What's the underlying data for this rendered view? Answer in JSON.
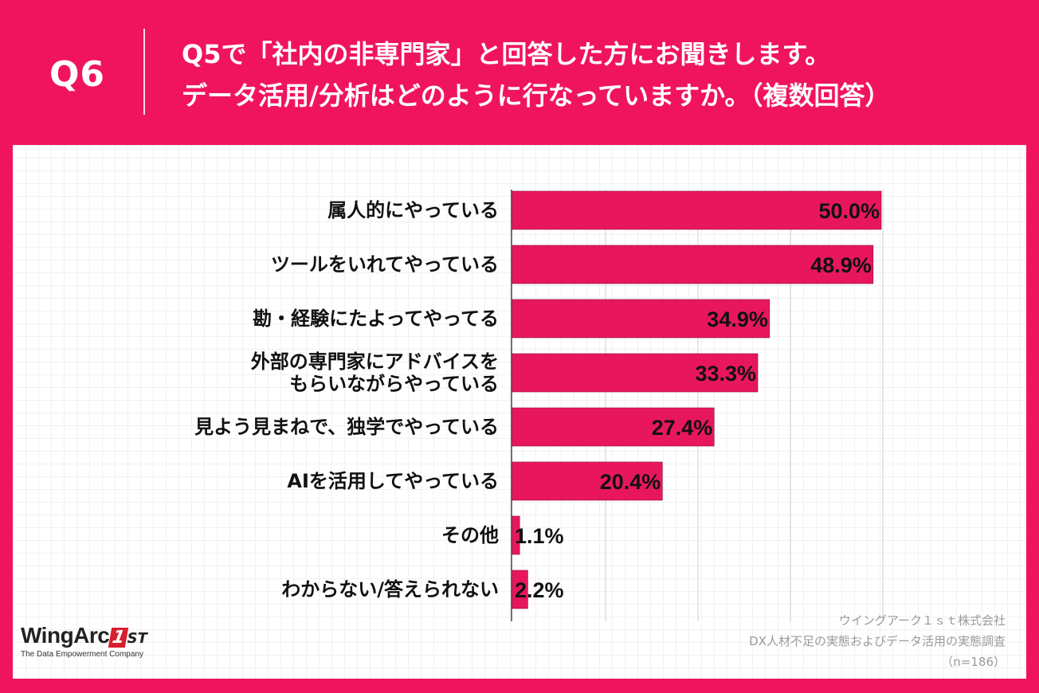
{
  "header": {
    "question_number": "Q6",
    "question_line1": "Q5で「社内の非専門家」と回答した方にお聞きします。",
    "question_line2": "データ活用/分析はどのように行なっていますか。（複数回答）"
  },
  "colors": {
    "brand": "#F0145F",
    "bar": "#E8175D",
    "bar_outline": "#8a0f2e"
  },
  "chart_data": {
    "type": "bar",
    "orientation": "horizontal",
    "title": "",
    "xlabel": "",
    "ylabel": "",
    "xlim": [
      0,
      50
    ],
    "grid": true,
    "categories": [
      "属人的にやっている",
      "ツールをいれてやっている",
      "勘・経験にたよってやってる",
      "外部の専門家にアドバイスを\nもらいながらやっている",
      "見よう見まねで、独学でやっている",
      "AIを活用してやっている",
      "その他",
      "わからない/答えられない"
    ],
    "values": [
      50.0,
      48.9,
      34.9,
      33.3,
      27.4,
      20.4,
      1.1,
      2.2
    ],
    "value_labels": [
      "50.0%",
      "48.9%",
      "34.9%",
      "33.3%",
      "27.4%",
      "20.4%",
      "1.1%",
      "2.2%"
    ]
  },
  "logo": {
    "name": "WingArc",
    "badge": "1",
    "suffix": "ST",
    "tagline": "The Data Empowerment Company"
  },
  "source": {
    "company": "ウイングアーク１ｓｔ株式会社",
    "survey": "DX人材不足の実態およびデータ活用の実態調査",
    "sample": "（n=186）"
  }
}
